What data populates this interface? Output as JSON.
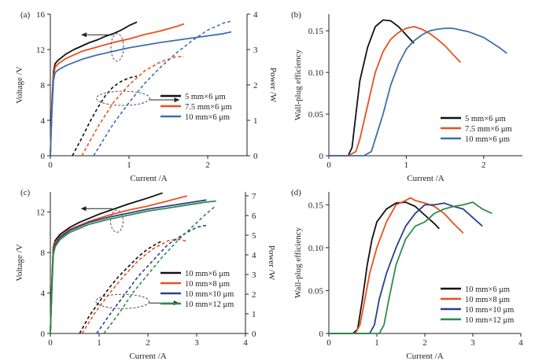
{
  "chart_data": [
    {
      "panel": "(a)",
      "type": "line",
      "xlabel": "Current /A",
      "ylabel": "Voltage /V",
      "y2label": "Power /W",
      "xlim": [
        0,
        2.5
      ],
      "xticks": [
        0,
        1,
        2
      ],
      "ylim": [
        0,
        16
      ],
      "yticks": [
        0,
        4,
        8,
        12,
        16
      ],
      "y2lim": [
        0,
        4
      ],
      "y2ticks": [
        0,
        1,
        2,
        3,
        4
      ],
      "legend": "middle-right",
      "annotations": [
        "arrow pointing left from solid curves to the Voltage axis",
        "arrow pointing right from dashed curves to the Power axis"
      ],
      "series": [
        {
          "name": "5 mm×6 μm",
          "color": "#111111",
          "axis": "left",
          "style": "solid",
          "x": [
            0,
            0.02,
            0.04,
            0.06,
            0.1,
            0.2,
            0.3,
            0.4,
            0.5,
            0.6,
            0.7,
            0.8,
            0.9,
            1.0,
            1.1
          ],
          "y": [
            0,
            6,
            9.5,
            10.4,
            10.8,
            11.5,
            12.0,
            12.4,
            12.8,
            13.1,
            13.5,
            13.8,
            14.2,
            14.7,
            15.1
          ]
        },
        {
          "name": "7.5 mm×6 μm",
          "color": "#e8501e",
          "axis": "left",
          "style": "solid",
          "x": [
            0,
            0.02,
            0.04,
            0.06,
            0.1,
            0.2,
            0.4,
            0.6,
            0.8,
            1.0,
            1.2,
            1.4,
            1.6,
            1.7
          ],
          "y": [
            0,
            5.5,
            9.0,
            10.0,
            10.4,
            11.0,
            11.8,
            12.3,
            12.8,
            13.2,
            13.7,
            14.1,
            14.6,
            14.9
          ]
        },
        {
          "name": "10 mm×6 μm",
          "color": "#3d6fb0",
          "axis": "left",
          "style": "solid",
          "x": [
            0,
            0.02,
            0.04,
            0.06,
            0.1,
            0.2,
            0.4,
            0.6,
            0.8,
            1.0,
            1.4,
            1.8,
            2.2,
            2.3
          ],
          "y": [
            0,
            5,
            8.5,
            9.4,
            9.7,
            10.2,
            10.9,
            11.4,
            11.8,
            12.2,
            12.8,
            13.3,
            13.8,
            14.0
          ]
        },
        {
          "name": "5 mm×6 μm power",
          "color": "#111111",
          "axis": "right",
          "style": "dashed",
          "x": [
            0.28,
            0.4,
            0.5,
            0.6,
            0.7,
            0.8,
            0.9,
            1.0,
            1.1
          ],
          "y": [
            0,
            0.5,
            0.95,
            1.35,
            1.7,
            1.95,
            2.1,
            2.2,
            2.25
          ]
        },
        {
          "name": "7.5 mm×6 μm power",
          "color": "#e8501e",
          "axis": "right",
          "style": "dashed",
          "x": [
            0.4,
            0.6,
            0.8,
            1.0,
            1.2,
            1.4,
            1.6,
            1.7
          ],
          "y": [
            0,
            0.8,
            1.5,
            2.0,
            2.4,
            2.65,
            2.8,
            2.8
          ]
        },
        {
          "name": "10 mm×6 μm power",
          "color": "#3d6fb0",
          "axis": "right",
          "style": "dashed",
          "x": [
            0.55,
            0.8,
            1.0,
            1.2,
            1.4,
            1.6,
            1.8,
            2.0,
            2.2,
            2.3
          ],
          "y": [
            0,
            0.9,
            1.5,
            2.05,
            2.5,
            2.9,
            3.25,
            3.55,
            3.75,
            3.8
          ]
        }
      ]
    },
    {
      "panel": "(b)",
      "type": "line",
      "xlabel": "Current /A",
      "ylabel": "Wall-plug efficiency",
      "xlim": [
        0,
        2.5
      ],
      "xticks": [
        0,
        1,
        2
      ],
      "ylim": [
        0,
        0.17
      ],
      "yticks": [
        0,
        0.05,
        0.1,
        0.15
      ],
      "ytick_labels": [
        "0",
        "0.05",
        "0.10",
        "0.15"
      ],
      "legend": "lower-right",
      "series": [
        {
          "name": "5 mm×6 μm",
          "color": "#111111",
          "x": [
            0,
            0.25,
            0.3,
            0.35,
            0.4,
            0.5,
            0.6,
            0.7,
            0.8,
            0.9,
            1.0,
            1.1
          ],
          "y": [
            0,
            0,
            0.01,
            0.05,
            0.09,
            0.13,
            0.155,
            0.163,
            0.162,
            0.155,
            0.145,
            0.135
          ]
        },
        {
          "name": "7.5 mm×6 μm",
          "color": "#e8501e",
          "x": [
            0,
            0.25,
            0.35,
            0.4,
            0.5,
            0.6,
            0.7,
            0.8,
            0.9,
            1.0,
            1.1,
            1.2,
            1.3,
            1.4,
            1.5,
            1.6,
            1.7
          ],
          "y": [
            0,
            0,
            0.005,
            0.02,
            0.06,
            0.1,
            0.125,
            0.14,
            0.148,
            0.153,
            0.155,
            0.152,
            0.147,
            0.14,
            0.132,
            0.122,
            0.112
          ]
        },
        {
          "name": "10 mm×6 μm",
          "color": "#3d6fb0",
          "x": [
            0,
            0.45,
            0.55,
            0.6,
            0.7,
            0.8,
            0.9,
            1.0,
            1.1,
            1.2,
            1.3,
            1.4,
            1.5,
            1.6,
            1.8,
            2.0,
            2.2,
            2.3
          ],
          "y": [
            0,
            0,
            0.005,
            0.02,
            0.05,
            0.085,
            0.11,
            0.128,
            0.138,
            0.145,
            0.15,
            0.152,
            0.153,
            0.153,
            0.149,
            0.142,
            0.13,
            0.123
          ]
        }
      ]
    },
    {
      "panel": "(c)",
      "type": "line",
      "xlabel": "Current /A",
      "ylabel": "Voltage /V",
      "y2label": "Power /W",
      "xlim": [
        0,
        4
      ],
      "xticks": [
        0,
        1,
        2,
        3,
        4
      ],
      "ylim": [
        0,
        14
      ],
      "yticks": [
        0,
        4,
        8,
        12
      ],
      "y2lim": [
        0,
        7.2
      ],
      "y2ticks": [
        0,
        1,
        2,
        3,
        4,
        5,
        6,
        7
      ],
      "legend": "middle-right",
      "annotations": [
        "arrow pointing left from solid curves to the Voltage axis",
        "arrow pointing right from dashed curves to the Power axis"
      ],
      "series": [
        {
          "name": "10 mm×6 μm",
          "color": "#111111",
          "axis": "left",
          "style": "solid",
          "x": [
            0,
            0.03,
            0.06,
            0.1,
            0.2,
            0.4,
            0.6,
            0.8,
            1.0,
            1.3,
            1.6,
            2.0,
            2.3
          ],
          "y": [
            0,
            5,
            8.5,
            9.2,
            9.8,
            10.5,
            11.0,
            11.4,
            11.8,
            12.3,
            12.8,
            13.4,
            13.9
          ]
        },
        {
          "name": "10 mm×8 μm",
          "color": "#e8501e",
          "axis": "left",
          "style": "solid",
          "x": [
            0,
            0.03,
            0.06,
            0.1,
            0.2,
            0.4,
            0.8,
            1.2,
            1.6,
            2.0,
            2.4,
            2.8
          ],
          "y": [
            0,
            5,
            8.3,
            9.0,
            9.6,
            10.3,
            11.1,
            11.7,
            12.2,
            12.6,
            13.1,
            13.6
          ]
        },
        {
          "name": "10 mm×10 μm",
          "color": "#2a3f8f",
          "axis": "left",
          "style": "solid",
          "x": [
            0,
            0.03,
            0.06,
            0.1,
            0.2,
            0.4,
            0.8,
            1.2,
            1.6,
            2.0,
            2.4,
            2.8,
            3.2
          ],
          "y": [
            0,
            4.5,
            8.0,
            8.8,
            9.5,
            10.2,
            11.0,
            11.5,
            11.9,
            12.3,
            12.6,
            12.9,
            13.2
          ]
        },
        {
          "name": "10 mm×12 μm",
          "color": "#2e8b4a",
          "axis": "left",
          "style": "solid",
          "x": [
            0,
            0.03,
            0.06,
            0.1,
            0.2,
            0.4,
            0.8,
            1.2,
            1.6,
            2.0,
            2.4,
            2.8,
            3.2,
            3.4
          ],
          "y": [
            0,
            4.2,
            7.8,
            8.6,
            9.3,
            10.0,
            10.8,
            11.3,
            11.7,
            12.1,
            12.4,
            12.7,
            13.0,
            13.1
          ]
        },
        {
          "name": "10 mm×6 μm power",
          "color": "#111111",
          "axis": "right",
          "style": "dashed",
          "x": [
            0.6,
            0.8,
            1.0,
            1.2,
            1.4,
            1.6,
            1.8,
            2.0,
            2.2,
            2.3
          ],
          "y": [
            0,
            0.9,
            1.6,
            2.3,
            2.9,
            3.4,
            3.9,
            4.3,
            4.6,
            4.7
          ]
        },
        {
          "name": "10 mm×8 μm power",
          "color": "#e8501e",
          "axis": "right",
          "style": "dashed",
          "x": [
            0.65,
            0.9,
            1.2,
            1.5,
            1.8,
            2.1,
            2.4,
            2.6,
            2.8
          ],
          "y": [
            0,
            1.0,
            2.0,
            2.9,
            3.7,
            4.3,
            4.7,
            4.8,
            4.7
          ]
        },
        {
          "name": "10 mm×10 μm power",
          "color": "#2a3f8f",
          "axis": "right",
          "style": "dashed",
          "x": [
            0.95,
            1.2,
            1.5,
            1.8,
            2.1,
            2.4,
            2.7,
            3.0,
            3.2
          ],
          "y": [
            0,
            0.9,
            1.9,
            2.9,
            3.7,
            4.5,
            5.0,
            5.4,
            5.5
          ]
        },
        {
          "name": "10 mm×12 μm power",
          "color": "#2e8b4a",
          "axis": "right",
          "style": "dashed",
          "x": [
            1.1,
            1.4,
            1.7,
            2.0,
            2.3,
            2.6,
            2.9,
            3.2,
            3.4
          ],
          "y": [
            0,
            1.0,
            2.1,
            3.0,
            3.9,
            4.7,
            5.4,
            6.1,
            6.5
          ]
        }
      ]
    },
    {
      "panel": "(d)",
      "type": "line",
      "xlabel": "Current /A",
      "ylabel": "Wall-plug efficiency",
      "xlim": [
        0,
        4
      ],
      "xticks": [
        0,
        1,
        2,
        3,
        4
      ],
      "ylim": [
        0,
        0.165
      ],
      "yticks": [
        0,
        0.05,
        0.1,
        0.15
      ],
      "ytick_labels": [
        "0",
        "0.05",
        "0.10",
        "0.15"
      ],
      "legend": "lower-right",
      "series": [
        {
          "name": "10 mm×6 μm",
          "color": "#111111",
          "x": [
            0,
            0.5,
            0.6,
            0.7,
            0.8,
            0.9,
            1.0,
            1.2,
            1.4,
            1.6,
            1.8,
            2.0,
            2.2,
            2.3
          ],
          "y": [
            0,
            0,
            0.005,
            0.04,
            0.08,
            0.11,
            0.13,
            0.145,
            0.152,
            0.153,
            0.148,
            0.138,
            0.128,
            0.122
          ]
        },
        {
          "name": "10 mm×8 μm",
          "color": "#e8501e",
          "x": [
            0,
            0.55,
            0.65,
            0.75,
            0.85,
            1.0,
            1.2,
            1.4,
            1.6,
            1.7,
            1.8,
            2.0,
            2.2,
            2.4,
            2.6,
            2.8
          ],
          "y": [
            0,
            0,
            0.01,
            0.04,
            0.07,
            0.1,
            0.13,
            0.15,
            0.155,
            0.158,
            0.155,
            0.152,
            0.148,
            0.14,
            0.128,
            0.117
          ]
        },
        {
          "name": "10 mm×10 μm",
          "color": "#2a3f8f",
          "x": [
            0,
            0.85,
            0.95,
            1.05,
            1.2,
            1.4,
            1.6,
            1.8,
            2.0,
            2.2,
            2.4,
            2.6,
            2.8,
            3.0,
            3.2
          ],
          "y": [
            0,
            0,
            0.01,
            0.04,
            0.07,
            0.1,
            0.125,
            0.14,
            0.15,
            0.15,
            0.152,
            0.148,
            0.145,
            0.135,
            0.125
          ]
        },
        {
          "name": "10 mm×12 μm",
          "color": "#2e8b4a",
          "x": [
            0,
            1.05,
            1.15,
            1.25,
            1.4,
            1.6,
            1.8,
            2.0,
            2.2,
            2.4,
            2.6,
            2.8,
            3.0,
            3.2,
            3.4
          ],
          "y": [
            0,
            0,
            0.01,
            0.04,
            0.08,
            0.11,
            0.125,
            0.13,
            0.14,
            0.145,
            0.148,
            0.15,
            0.153,
            0.145,
            0.14
          ]
        }
      ]
    }
  ]
}
